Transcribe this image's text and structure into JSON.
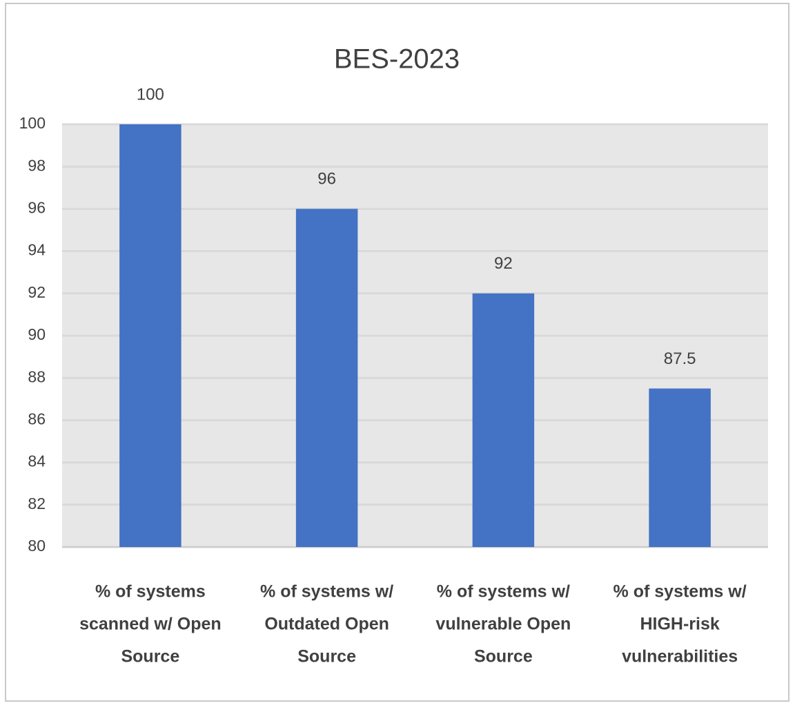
{
  "chart_data": {
    "type": "bar",
    "title": "BES-2023",
    "categories": [
      [
        "% of systems",
        "scanned w/ Open",
        "Source"
      ],
      [
        "% of systems w/",
        "Outdated Open",
        "Source"
      ],
      [
        "% of systems w/",
        "vulnerable Open",
        "Source"
      ],
      [
        "% of systems w/",
        "HIGH-risk",
        "vulnerabilities"
      ]
    ],
    "values": [
      100,
      96,
      92,
      87.5
    ],
    "color": "#4472c4",
    "ylim": [
      80,
      100
    ],
    "yticks": [
      80,
      82,
      84,
      86,
      88,
      90,
      92,
      94,
      96,
      98,
      100
    ],
    "grid": true
  }
}
